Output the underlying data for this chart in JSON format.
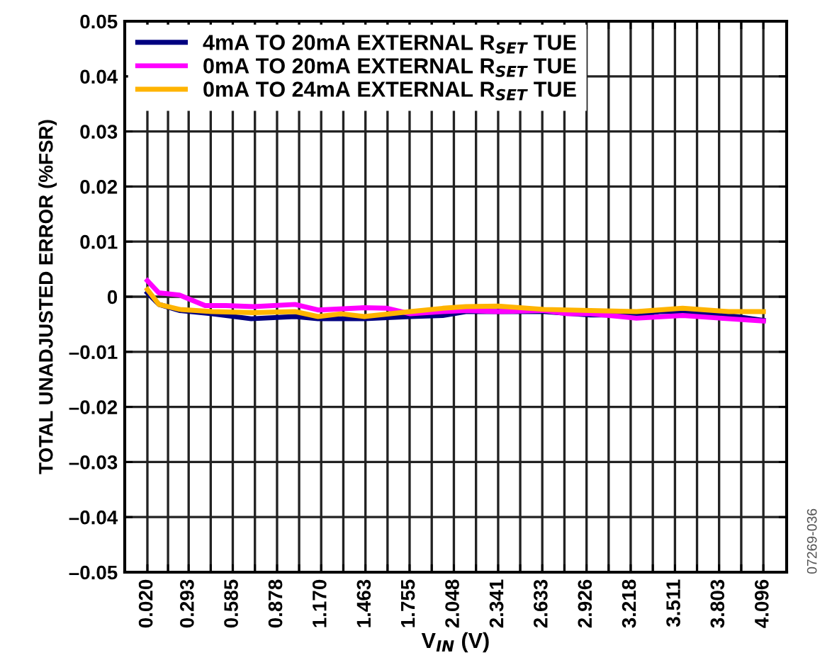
{
  "chart_data": {
    "type": "line",
    "xlabel": "V$_{IN}$ (V)",
    "ylabel": "TOTAL UNADJUSTED ERROR (%FSR)",
    "annotations": [
      "07269-036"
    ],
    "xlim": [
      -0.13,
      4.25
    ],
    "ylim": [
      -0.05,
      0.05
    ],
    "xticks": [
      {
        "value": 0.02,
        "label": "0.020"
      },
      {
        "value": 0.1565,
        "label": null
      },
      {
        "value": 0.293,
        "label": "0.293"
      },
      {
        "value": 0.439,
        "label": null
      },
      {
        "value": 0.585,
        "label": "0.585"
      },
      {
        "value": 0.7315,
        "label": null
      },
      {
        "value": 0.878,
        "label": "0.878"
      },
      {
        "value": 1.024,
        "label": null
      },
      {
        "value": 1.17,
        "label": "1.170"
      },
      {
        "value": 1.3165,
        "label": null
      },
      {
        "value": 1.463,
        "label": "1.463"
      },
      {
        "value": 1.609,
        "label": null
      },
      {
        "value": 1.755,
        "label": "1.755"
      },
      {
        "value": 1.9015,
        "label": null
      },
      {
        "value": 2.048,
        "label": "2.048"
      },
      {
        "value": 2.1945,
        "label": null
      },
      {
        "value": 2.341,
        "label": "2.341"
      },
      {
        "value": 2.487,
        "label": null
      },
      {
        "value": 2.633,
        "label": "2.633"
      },
      {
        "value": 2.7795,
        "label": null
      },
      {
        "value": 2.926,
        "label": "2.926"
      },
      {
        "value": 3.072,
        "label": null
      },
      {
        "value": 3.218,
        "label": "3.218"
      },
      {
        "value": 3.3645,
        "label": null
      },
      {
        "value": 3.511,
        "label": "3.511"
      },
      {
        "value": 3.657,
        "label": null
      },
      {
        "value": 3.803,
        "label": "3.803"
      },
      {
        "value": 3.9495,
        "label": null
      },
      {
        "value": 4.096,
        "label": "4.096"
      }
    ],
    "yticks": [
      {
        "value": -0.05,
        "label": "–0.05"
      },
      {
        "value": -0.04,
        "label": "–0.04"
      },
      {
        "value": -0.03,
        "label": "–0.03"
      },
      {
        "value": -0.02,
        "label": "–0.02"
      },
      {
        "value": -0.01,
        "label": "–0.01"
      },
      0,
      0.01,
      0.02,
      0.03,
      0.04,
      0.05
    ],
    "grid": true,
    "legend": "top left",
    "series": [
      {
        "name": "4mA TO 20mA EXTERNAL R$_{SET}$ TUE",
        "color": "#000080",
        "x": [
          0.02,
          0.096,
          0.233,
          0.448,
          0.707,
          0.997,
          1.149,
          1.455,
          1.76,
          1.974,
          2.127,
          2.34,
          2.646,
          2.951,
          3.256,
          3.409,
          3.562,
          3.867,
          4.096
        ],
        "values": [
          0.0007,
          -0.0014,
          -0.0025,
          -0.0031,
          -0.004,
          -0.0036,
          -0.004,
          -0.004,
          -0.0036,
          -0.0034,
          -0.0027,
          -0.0027,
          -0.0027,
          -0.0033,
          -0.0033,
          -0.0027,
          -0.0027,
          -0.0034,
          -0.0043
        ]
      },
      {
        "name": "0mA TO 20mA EXTERNAL R$_{SET}$ TUE",
        "color": "#ff00ff",
        "x": [
          0.02,
          0.096,
          0.233,
          0.402,
          0.539,
          0.723,
          0.997,
          1.149,
          1.455,
          1.607,
          1.76,
          1.974,
          2.127,
          2.34,
          2.646,
          2.8,
          2.951,
          3.15,
          3.256,
          3.562,
          3.867,
          4.096
        ],
        "values": [
          0.0029,
          0.0007,
          0.0003,
          -0.0016,
          -0.0016,
          -0.0018,
          -0.0014,
          -0.0024,
          -0.002,
          -0.0021,
          -0.0031,
          -0.0027,
          -0.0025,
          -0.0027,
          -0.0025,
          -0.0031,
          -0.0031,
          -0.0036,
          -0.0039,
          -0.0034,
          -0.004,
          -0.0044
        ]
      },
      {
        "name": "0mA TO 24mA EXTERNAL R$_{SET}$ TUE",
        "color": "#ffb400",
        "x": [
          0.02,
          0.096,
          0.233,
          0.448,
          0.723,
          0.997,
          1.149,
          1.302,
          1.455,
          1.76,
          1.974,
          2.127,
          2.34,
          2.646,
          2.951,
          3.256,
          3.562,
          3.867,
          4.096
        ],
        "values": [
          0.0013,
          -0.0014,
          -0.0023,
          -0.0027,
          -0.0029,
          -0.0027,
          -0.0036,
          -0.0031,
          -0.0036,
          -0.0027,
          -0.0021,
          -0.0018,
          -0.0017,
          -0.0023,
          -0.0025,
          -0.0027,
          -0.0021,
          -0.0027,
          -0.0027
        ]
      }
    ]
  }
}
